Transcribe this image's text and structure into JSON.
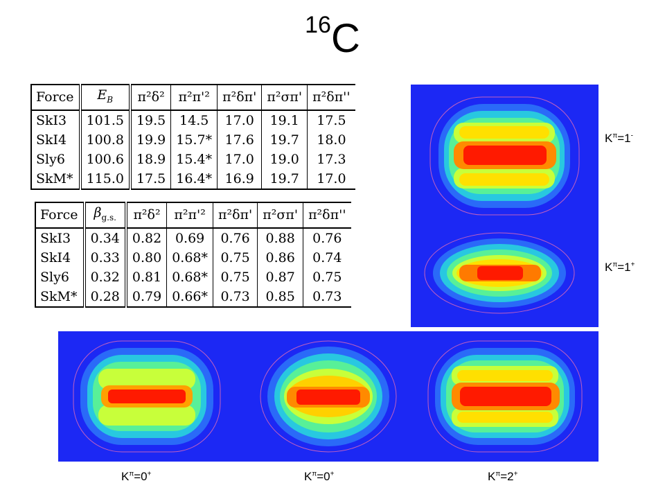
{
  "title": {
    "mass_number": "16",
    "element": "C"
  },
  "table_energies": {
    "header": [
      "Force",
      "E_B",
      "π²δ²",
      "π²π'²",
      "π²δπ'",
      "π²σπ'",
      "π²δπ''"
    ],
    "rows": [
      [
        "SkI3",
        "101.5",
        "19.5",
        "14.5",
        "17.0",
        "19.1",
        "17.5"
      ],
      [
        "SkI4",
        "100.8",
        "19.9",
        "15.7*",
        "17.6",
        "19.7",
        "18.0"
      ],
      [
        "Sly6",
        "100.6",
        "18.9",
        "15.4*",
        "17.0",
        "19.0",
        "17.3"
      ],
      [
        "SkM*",
        "115.0",
        "17.5",
        "16.4*",
        "16.9",
        "19.7",
        "17.0"
      ]
    ]
  },
  "table_deformations": {
    "header": [
      "Force",
      "β_g.s.",
      "π²δ²",
      "π²π'²",
      "π²δπ'",
      "π²σπ'",
      "π²δπ''"
    ],
    "rows": [
      [
        "SkI3",
        "0.34",
        "0.82",
        "0.69",
        "0.76",
        "0.88",
        "0.76"
      ],
      [
        "SkI4",
        "0.33",
        "0.80",
        "0.68*",
        "0.75",
        "0.86",
        "0.74"
      ],
      [
        "Sly6",
        "0.32",
        "0.81",
        "0.68*",
        "0.75",
        "0.87",
        "0.75"
      ],
      [
        "SkM*",
        "0.28",
        "0.79",
        "0.66*",
        "0.73",
        "0.85",
        "0.73"
      ]
    ]
  },
  "labels": {
    "k_right_top": {
      "base": "K",
      "pi": "π",
      "val": "=1",
      "parity": "-"
    },
    "k_right_mid": {
      "base": "K",
      "pi": "π",
      "val": "=1",
      "parity": "+"
    },
    "k_bottom_1": {
      "base": "K",
      "pi": "π",
      "val": "=0",
      "parity": "+"
    },
    "k_bottom_2": {
      "base": "K",
      "pi": "π",
      "val": "=0",
      "parity": "+"
    },
    "k_bottom_3": {
      "base": "K",
      "pi": "π",
      "val": "=2",
      "parity": "+"
    }
  },
  "colors": {
    "background_map": "#1c28f4",
    "peak": "#ff1a00"
  }
}
